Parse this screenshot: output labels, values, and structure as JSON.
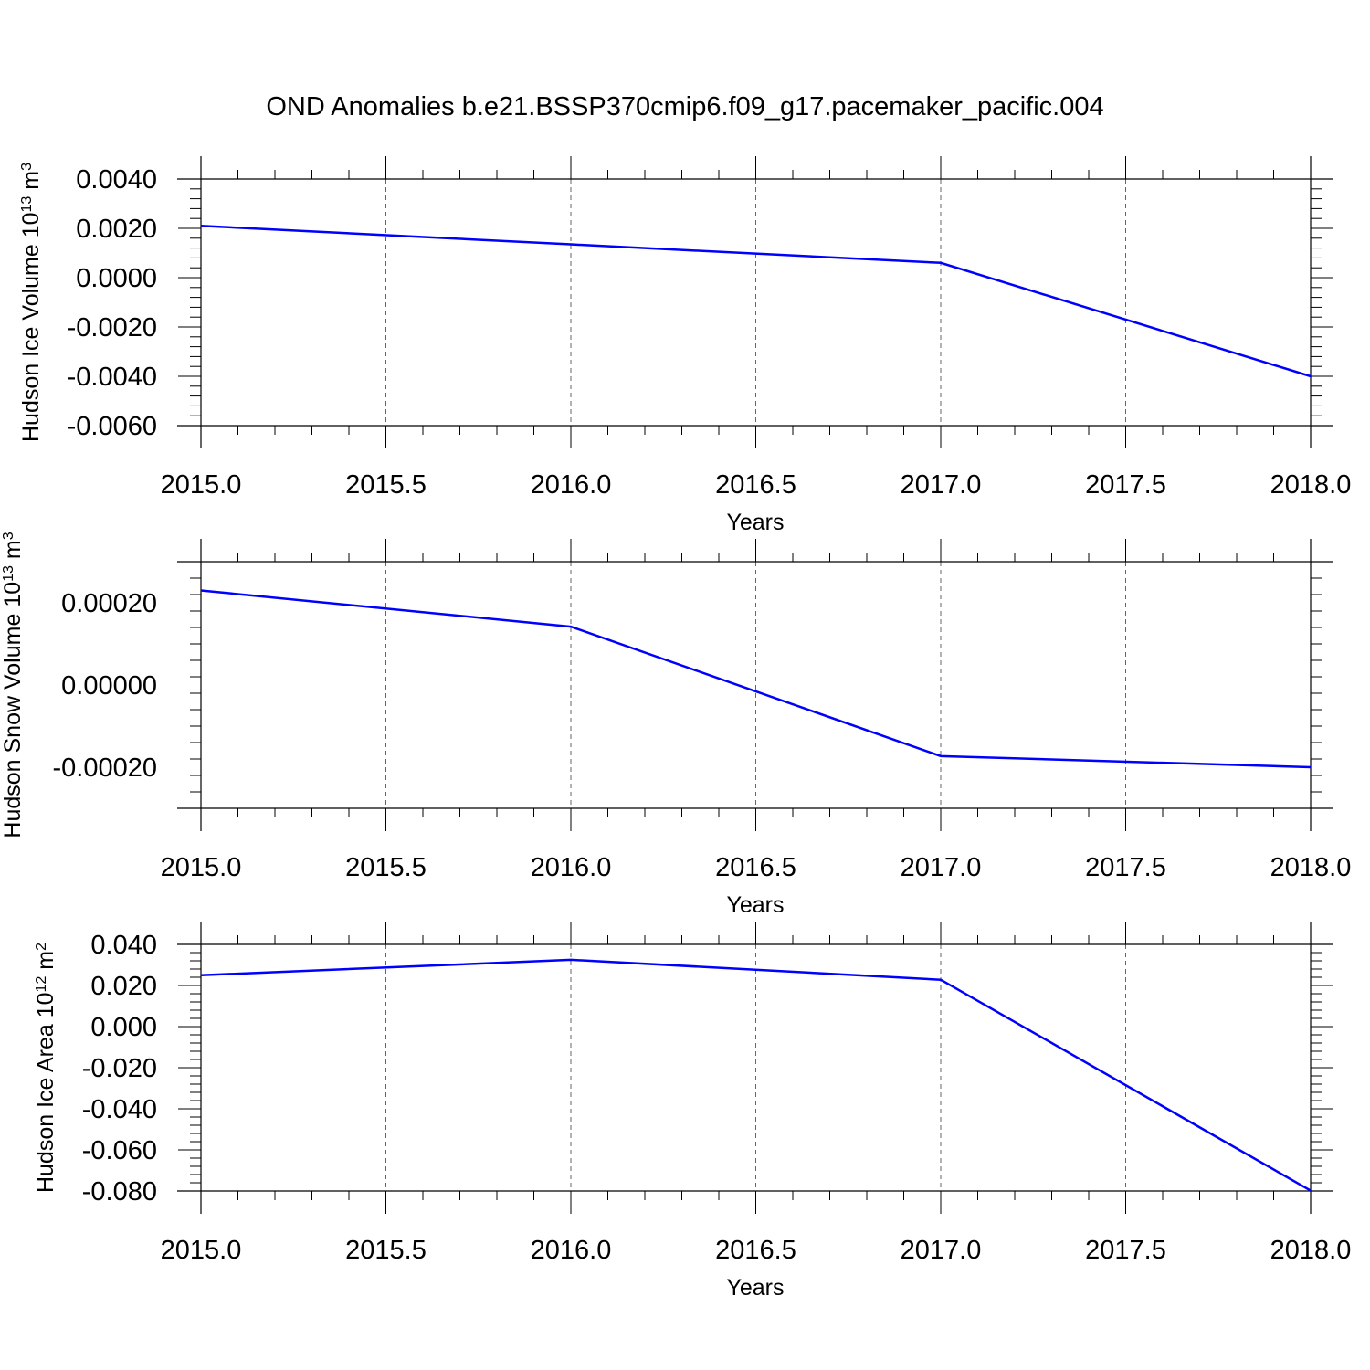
{
  "title": "OND Anomalies b.e21.BSSP370cmip6.f09_g17.pacemaker_pacific.004",
  "line_color": "#0000ff",
  "chart_data": [
    {
      "type": "line",
      "ylabel": "Hudson Ice Volume 10",
      "ylabel_exp": "13",
      "ylabel_unit": " m",
      "ylabel_unit_exp": "3",
      "xlabel": "Years",
      "xlim": [
        2015.0,
        2018.0
      ],
      "ylim": [
        -0.006,
        0.004
      ],
      "x_ticks": [
        "2015.0",
        "2015.5",
        "2016.0",
        "2016.5",
        "2017.0",
        "2017.5",
        "2018.0"
      ],
      "y_ticks": [
        "0.0040",
        "0.0020",
        "0.0000",
        "-0.0020",
        "-0.0040",
        "-0.0060"
      ],
      "y_tick_values": [
        0.004,
        0.002,
        0.0,
        -0.002,
        -0.004,
        -0.006
      ],
      "grid": "vertical dashed",
      "x": [
        2015,
        2016,
        2017,
        2018
      ],
      "series": [
        {
          "values": [
            0.0021,
            0.00135,
            0.0006,
            -0.004
          ]
        }
      ]
    },
    {
      "type": "line",
      "ylabel": "Hudson Snow Volume 10",
      "ylabel_exp": "13",
      "ylabel_unit": " m",
      "ylabel_unit_exp": "3",
      "xlabel": "Years",
      "xlim": [
        2015.0,
        2018.0
      ],
      "ylim": [
        -0.0003,
        0.0003
      ],
      "x_ticks": [
        "2015.0",
        "2015.5",
        "2016.0",
        "2016.5",
        "2017.0",
        "2017.5",
        "2018.0"
      ],
      "y_ticks": [
        "0.00020",
        "0.00000",
        "-0.00020"
      ],
      "y_tick_values": [
        0.0002,
        0.0,
        -0.0002
      ],
      "grid": "vertical dashed",
      "x": [
        2015,
        2016,
        2017,
        2018
      ],
      "series": [
        {
          "values": [
            0.00023,
            0.000142,
            -0.000173,
            -0.0002
          ]
        }
      ]
    },
    {
      "type": "line",
      "ylabel": "Hudson Ice Area 10",
      "ylabel_exp": "12",
      "ylabel_unit": " m",
      "ylabel_unit_exp": "2",
      "xlabel": "Years",
      "xlim": [
        2015.0,
        2018.0
      ],
      "ylim": [
        -0.08,
        0.04
      ],
      "x_ticks": [
        "2015.0",
        "2015.5",
        "2016.0",
        "2016.5",
        "2017.0",
        "2017.5",
        "2018.0"
      ],
      "y_ticks": [
        "0.040",
        "0.020",
        "0.000",
        "-0.020",
        "-0.040",
        "-0.060",
        "-0.080"
      ],
      "y_tick_values": [
        0.04,
        0.02,
        0.0,
        -0.02,
        -0.04,
        -0.06,
        -0.08
      ],
      "grid": "vertical dashed",
      "x": [
        2015,
        2016,
        2017,
        2018
      ],
      "series": [
        {
          "values": [
            0.025,
            0.0325,
            0.0228,
            -0.0798
          ]
        }
      ]
    }
  ]
}
